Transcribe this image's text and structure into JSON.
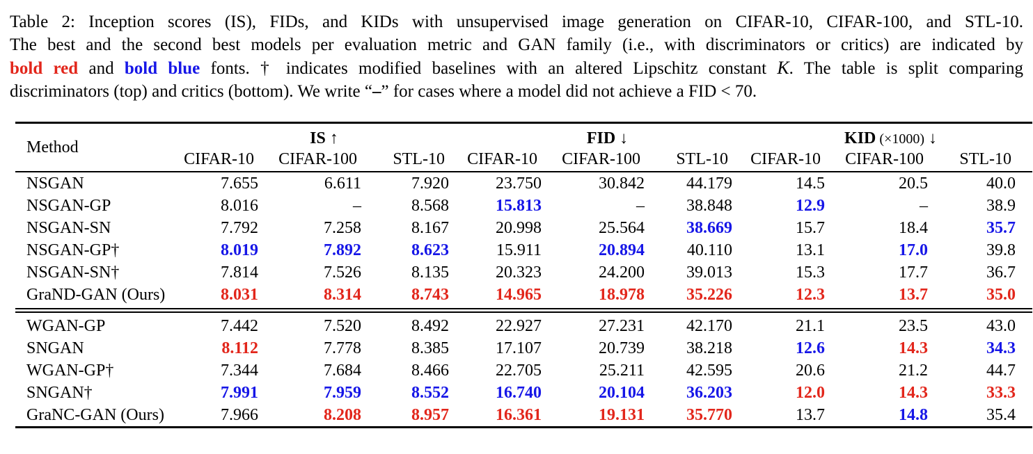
{
  "colors": {
    "best_bold_red": "#e2261b",
    "second_bold_blue": "#1616e7",
    "text": "#000000",
    "background": "#ffffff"
  },
  "caption": {
    "lines": [
      [
        {
          "text": "Table 2: Inception scores (IS), FIDs, and KIDs with unsupervised image generation on CIFAR-10, CIFAR-100, and STL-10.",
          "style": "normal"
        }
      ],
      [
        {
          "text": "The best and the second best models per evaluation metric and GAN family (i.e., with discriminators or critics) are indicated by",
          "style": "normal"
        }
      ],
      [
        {
          "text": "bold red",
          "style": "bold-red"
        },
        {
          "text": " and ",
          "style": "normal"
        },
        {
          "text": "bold blue",
          "style": "bold-blue"
        },
        {
          "text": " fonts. † indicates modified baselines with an altered Lipschitz constant ",
          "style": "normal"
        },
        {
          "text": "K",
          "style": "script"
        },
        {
          "text": ". The table is split comparing",
          "style": "normal"
        }
      ],
      [
        {
          "text": "discriminators (top) and critics (bottom). We write “",
          "style": "normal"
        },
        {
          "text": "–",
          "style": "bold"
        },
        {
          "text": "” for cases where a model did not achieve a FID < 70.",
          "style": "normal"
        }
      ]
    ]
  },
  "table": {
    "method_header": "Method",
    "groups": [
      {
        "key": "is",
        "label": "IS",
        "paren": "",
        "arrow": "↑"
      },
      {
        "key": "fid",
        "label": "FID",
        "paren": "",
        "arrow": "↓"
      },
      {
        "key": "kid",
        "label": "KID",
        "paren": "(×1000)",
        "arrow": "↓"
      }
    ],
    "subheaders": [
      "CIFAR-10",
      "CIFAR-100",
      "STL-10",
      "CIFAR-10",
      "CIFAR-100",
      "STL-10",
      "CIFAR-10",
      "CIFAR-100",
      "STL-10"
    ],
    "style_legend": {
      "n": "normal black",
      "b": "best: bold red",
      "s": "second best: bold blue"
    },
    "missing_value_symbol": "–",
    "sections": [
      {
        "name": "discriminators",
        "rows": [
          {
            "method": "NSGAN",
            "values": [
              "7.655",
              "6.611",
              "7.920",
              "23.750",
              "30.842",
              "44.179",
              "14.5",
              "20.5",
              "40.0"
            ],
            "styles": [
              "n",
              "n",
              "n",
              "n",
              "n",
              "n",
              "n",
              "n",
              "n"
            ]
          },
          {
            "method": "NSGAN-GP",
            "values": [
              "8.016",
              "–",
              "8.568",
              "15.813",
              "–",
              "38.848",
              "12.9",
              "–",
              "38.9"
            ],
            "styles": [
              "n",
              "n",
              "n",
              "s",
              "n",
              "n",
              "s",
              "n",
              "n"
            ]
          },
          {
            "method": "NSGAN-SN",
            "values": [
              "7.792",
              "7.258",
              "8.167",
              "20.998",
              "25.564",
              "38.669",
              "15.7",
              "18.4",
              "35.7"
            ],
            "styles": [
              "n",
              "n",
              "n",
              "n",
              "n",
              "s",
              "n",
              "n",
              "s"
            ]
          },
          {
            "method": "NSGAN-GP†",
            "values": [
              "8.019",
              "7.892",
              "8.623",
              "15.911",
              "20.894",
              "40.110",
              "13.1",
              "17.0",
              "39.8"
            ],
            "styles": [
              "s",
              "s",
              "s",
              "n",
              "s",
              "n",
              "n",
              "s",
              "n"
            ]
          },
          {
            "method": "NSGAN-SN†",
            "values": [
              "7.814",
              "7.526",
              "8.135",
              "20.323",
              "24.200",
              "39.013",
              "15.3",
              "17.7",
              "36.7"
            ],
            "styles": [
              "n",
              "n",
              "n",
              "n",
              "n",
              "n",
              "n",
              "n",
              "n"
            ]
          },
          {
            "method": "GraND-GAN (Ours)",
            "values": [
              "8.031",
              "8.314",
              "8.743",
              "14.965",
              "18.978",
              "35.226",
              "12.3",
              "13.7",
              "35.0"
            ],
            "styles": [
              "b",
              "b",
              "b",
              "b",
              "b",
              "b",
              "b",
              "b",
              "b"
            ]
          }
        ]
      },
      {
        "name": "critics",
        "rows": [
          {
            "method": "WGAN-GP",
            "values": [
              "7.442",
              "7.520",
              "8.492",
              "22.927",
              "27.231",
              "42.170",
              "21.1",
              "23.5",
              "43.0"
            ],
            "styles": [
              "n",
              "n",
              "n",
              "n",
              "n",
              "n",
              "n",
              "n",
              "n"
            ]
          },
          {
            "method": "SNGAN",
            "values": [
              "8.112",
              "7.778",
              "8.385",
              "17.107",
              "20.739",
              "38.218",
              "12.6",
              "14.3",
              "34.3"
            ],
            "styles": [
              "b",
              "n",
              "n",
              "n",
              "n",
              "n",
              "s",
              "b",
              "s"
            ]
          },
          {
            "method": "WGAN-GP†",
            "values": [
              "7.344",
              "7.684",
              "8.466",
              "22.705",
              "25.211",
              "42.595",
              "20.6",
              "21.2",
              "44.7"
            ],
            "styles": [
              "n",
              "n",
              "n",
              "n",
              "n",
              "n",
              "n",
              "n",
              "n"
            ]
          },
          {
            "method": "SNGAN†",
            "values": [
              "7.991",
              "7.959",
              "8.552",
              "16.740",
              "20.104",
              "36.203",
              "12.0",
              "14.3",
              "33.3"
            ],
            "styles": [
              "s",
              "s",
              "s",
              "s",
              "s",
              "s",
              "b",
              "b",
              "b"
            ]
          },
          {
            "method": "GraNC-GAN (Ours)",
            "values": [
              "7.966",
              "8.208",
              "8.957",
              "16.361",
              "19.131",
              "35.770",
              "13.7",
              "14.8",
              "35.4"
            ],
            "styles": [
              "n",
              "b",
              "b",
              "b",
              "b",
              "b",
              "n",
              "s",
              "n"
            ]
          }
        ]
      }
    ]
  }
}
